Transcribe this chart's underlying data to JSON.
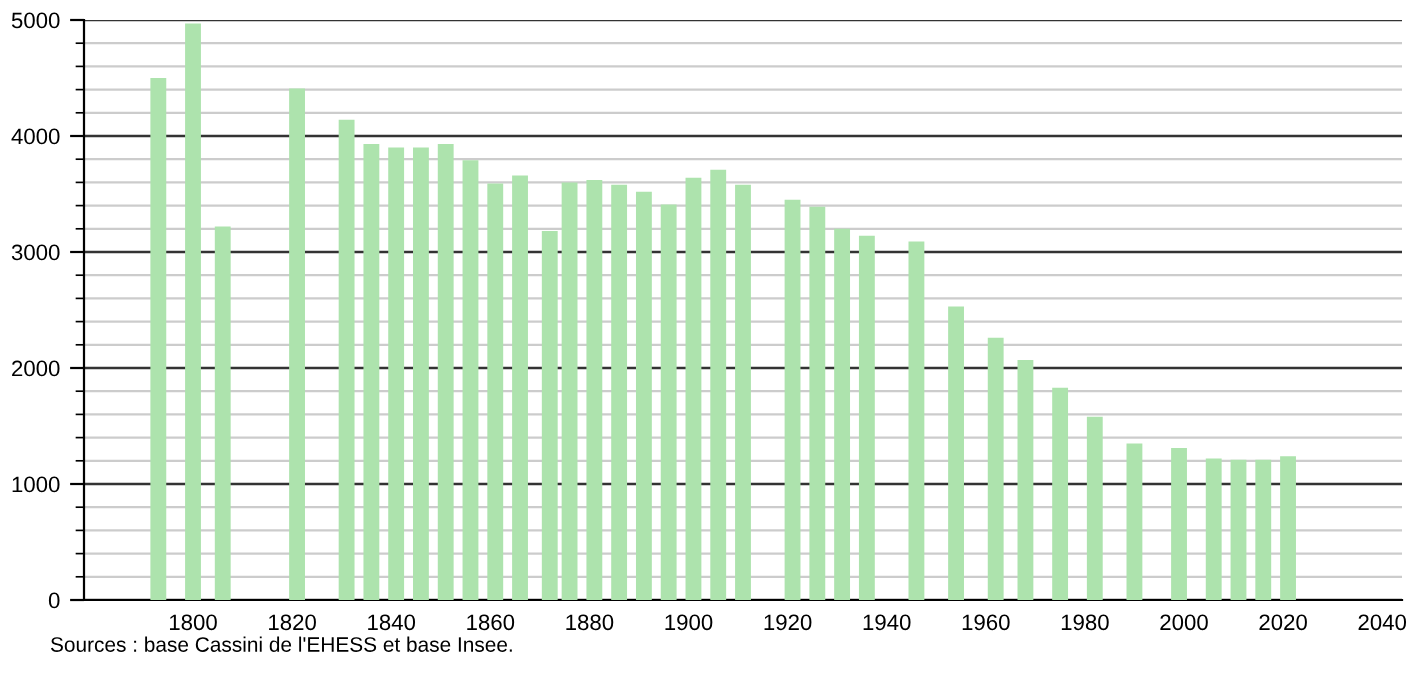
{
  "chart_data": {
    "type": "bar",
    "color": "#ade3ad",
    "x": [
      1793,
      1800,
      1806,
      1821,
      1831,
      1836,
      1841,
      1846,
      1851,
      1856,
      1861,
      1866,
      1872,
      1876,
      1881,
      1886,
      1891,
      1896,
      1901,
      1906,
      1911,
      1921,
      1926,
      1931,
      1936,
      1946,
      1954,
      1962,
      1968,
      1975,
      1982,
      1990,
      1999,
      2006,
      2011,
      2016,
      2021
    ],
    "values": [
      4500,
      4970,
      3220,
      4410,
      4140,
      3930,
      3900,
      3900,
      3930,
      3790,
      3590,
      3660,
      3180,
      3600,
      3620,
      3580,
      3520,
      3410,
      3640,
      3710,
      3580,
      3450,
      3390,
      3200,
      3140,
      3090,
      2530,
      2260,
      2070,
      1830,
      1580,
      1350,
      1310,
      1220,
      1210,
      1210,
      1240
    ],
    "xlim": [
      1778,
      2044
    ],
    "xticks": [
      1800,
      1820,
      1840,
      1860,
      1880,
      1900,
      1920,
      1940,
      1960,
      1980,
      2000,
      2020,
      2040
    ],
    "ylim": [
      0,
      5000
    ],
    "yticks": [
      0,
      {
        "value": 200,
        "label": null
      },
      {
        "value": 400,
        "label": null
      },
      {
        "value": 600,
        "label": null
      },
      {
        "value": 800,
        "label": null
      },
      1000,
      {
        "value": 1200,
        "label": null
      },
      {
        "value": 1400,
        "label": null
      },
      {
        "value": 1600,
        "label": null
      },
      {
        "value": 1800,
        "label": null
      },
      2000,
      {
        "value": 2200,
        "label": null
      },
      {
        "value": 2400,
        "label": null
      },
      {
        "value": 2600,
        "label": null
      },
      {
        "value": 2800,
        "label": null
      },
      3000,
      {
        "value": 3200,
        "label": null
      },
      {
        "value": 3400,
        "label": null
      },
      {
        "value": 3600,
        "label": null
      },
      {
        "value": 3800,
        "label": null
      },
      4000,
      {
        "value": 4200,
        "label": null
      },
      {
        "value": 4400,
        "label": null
      },
      {
        "value": 4600,
        "label": null
      },
      {
        "value": 4800,
        "label": null
      },
      5000
    ],
    "grid": "y",
    "annotations": [
      "Sources : base Cassini de l'EHESS et base Insee."
    ]
  }
}
